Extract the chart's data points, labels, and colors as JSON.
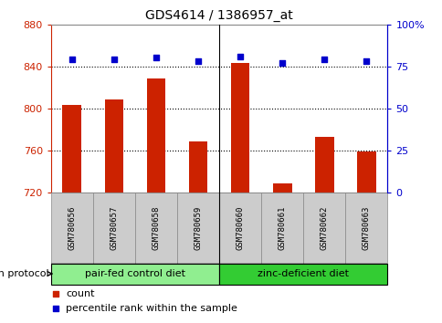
{
  "title": "GDS4614 / 1386957_at",
  "samples": [
    "GSM780656",
    "GSM780657",
    "GSM780658",
    "GSM780659",
    "GSM780660",
    "GSM780661",
    "GSM780662",
    "GSM780663"
  ],
  "counts": [
    803,
    808,
    828,
    768,
    843,
    728,
    773,
    759
  ],
  "percentiles": [
    79,
    79,
    80,
    78,
    81,
    77,
    79,
    78
  ],
  "y_min": 720,
  "y_max": 880,
  "y_ticks": [
    720,
    760,
    800,
    840,
    880
  ],
  "y2_ticks": [
    0,
    25,
    50,
    75,
    100
  ],
  "y2_tick_labels": [
    "0",
    "25",
    "50",
    "75",
    "100%"
  ],
  "groups": [
    {
      "label": "pair-fed control diet",
      "color": "#90ee90"
    },
    {
      "label": "zinc-deficient diet",
      "color": "#33cc33"
    }
  ],
  "bar_color": "#cc2200",
  "dot_color": "#0000cc",
  "bar_width": 0.45,
  "tick_color_left": "#cc2200",
  "tick_color_right": "#0000cc",
  "legend_count_label": "count",
  "legend_pct_label": "percentile rank within the sample",
  "growth_protocol_label": "growth protocol",
  "sample_bg": "#cccccc"
}
